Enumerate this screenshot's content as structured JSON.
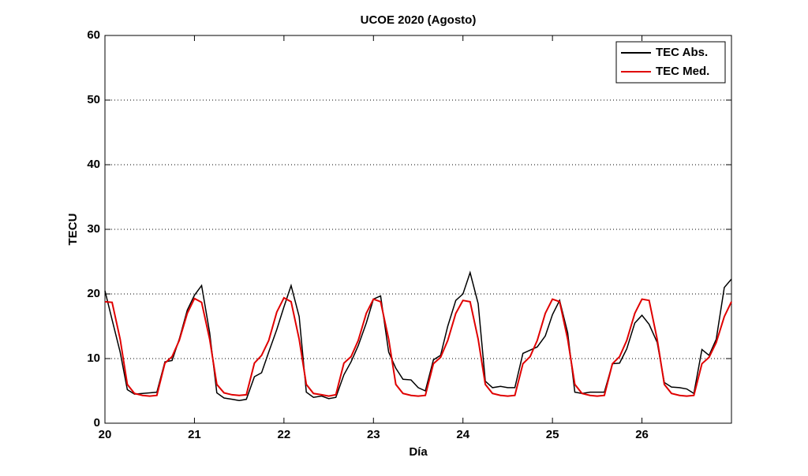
{
  "chart_data": {
    "type": "line",
    "title": "UCOE 2020 (Agosto)",
    "x_label": "Día",
    "y_label": "TECU",
    "x": [
      20,
      20.08,
      20.17,
      20.25,
      20.33,
      20.42,
      20.5,
      20.58,
      20.67,
      20.75,
      20.83,
      20.92,
      21,
      21.08,
      21.17,
      21.25,
      21.33,
      21.42,
      21.5,
      21.58,
      21.67,
      21.75,
      21.83,
      21.92,
      22,
      22.08,
      22.17,
      22.25,
      22.33,
      22.42,
      22.5,
      22.58,
      22.67,
      22.75,
      22.83,
      22.92,
      23,
      23.08,
      23.17,
      23.25,
      23.33,
      23.42,
      23.5,
      23.58,
      23.67,
      23.75,
      23.83,
      23.92,
      24,
      24.08,
      24.17,
      24.25,
      24.33,
      24.42,
      24.5,
      24.58,
      24.67,
      24.75,
      24.83,
      24.92,
      25,
      25.08,
      25.17,
      25.25,
      25.33,
      25.42,
      25.5,
      25.58,
      25.67,
      25.75,
      25.83,
      25.92,
      26,
      26.08,
      26.17,
      26.25,
      26.33,
      26.42,
      26.5,
      26.58,
      26.67,
      26.75,
      26.83,
      26.92,
      27
    ],
    "series": [
      {
        "name": "TEC Abs.",
        "color": "#000000",
        "values": [
          20.5,
          16,
          11,
          5.2,
          4.5,
          4.6,
          4.7,
          4.8,
          9.5,
          9.7,
          13,
          17.5,
          19.8,
          21.3,
          14,
          4.7,
          3.9,
          3.7,
          3.5,
          3.7,
          7.2,
          7.8,
          11,
          14.5,
          18,
          21.3,
          16.5,
          4.8,
          4,
          4.2,
          3.8,
          4,
          7.5,
          9.5,
          12,
          15.5,
          19.2,
          19.7,
          11,
          8.5,
          6.8,
          6.7,
          5.5,
          5,
          9.8,
          10.5,
          15,
          19,
          20,
          23.3,
          18.5,
          6.5,
          5.5,
          5.7,
          5.5,
          5.5,
          10.8,
          11.3,
          11.8,
          13.5,
          16.8,
          19,
          14,
          4.8,
          4.6,
          4.8,
          4.8,
          4.8,
          9.2,
          9.3,
          11.5,
          15.5,
          16.7,
          15.3,
          12.5,
          6.3,
          5.6,
          5.5,
          5.3,
          4.6,
          11.4,
          10.5,
          13,
          21,
          22.3
        ]
      },
      {
        "name": "TEC Med.",
        "color": "#e00000",
        "values": [
          18.8,
          18.7,
          13,
          6,
          4.6,
          4.3,
          4.2,
          4.3,
          9.3,
          10.3,
          12.8,
          17,
          19.3,
          18.7,
          13,
          6,
          4.7,
          4.4,
          4.3,
          4.4,
          9.3,
          10.5,
          12.8,
          17.2,
          19.4,
          18.8,
          13,
          6,
          4.6,
          4.4,
          4.2,
          4.4,
          9.3,
          10.3,
          12.8,
          17,
          19.2,
          18.8,
          13,
          6,
          4.6,
          4.3,
          4.2,
          4.3,
          9.2,
          10.2,
          12.8,
          17,
          19,
          18.8,
          13,
          6,
          4.6,
          4.3,
          4.2,
          4.3,
          9.2,
          10.3,
          12.8,
          17,
          19.2,
          18.8,
          13,
          6,
          4.6,
          4.3,
          4.2,
          4.3,
          9.2,
          10.3,
          12.8,
          17,
          19.2,
          19,
          13,
          6,
          4.6,
          4.3,
          4.2,
          4.3,
          9.2,
          10.2,
          12.5,
          16.5,
          18.8
        ]
      }
    ],
    "xlim": [
      20,
      27
    ],
    "xticks": [
      20,
      21,
      22,
      23,
      24,
      25,
      26
    ],
    "ylim": [
      0,
      60
    ],
    "yticks": [
      0,
      10,
      20,
      30,
      40,
      50,
      60
    ],
    "grid": true,
    "legend": "upper right"
  }
}
